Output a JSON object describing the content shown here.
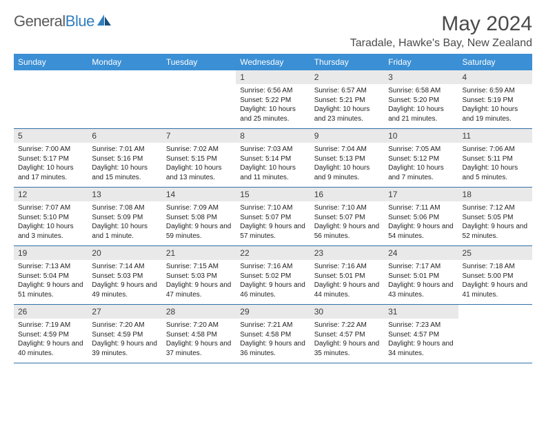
{
  "brand": {
    "word1": "General",
    "word2": "Blue",
    "text_color": "#5a5a5a",
    "accent_color": "#2f7fbf"
  },
  "title": "May 2024",
  "location": "Taradale, Hawke's Bay, New Zealand",
  "colors": {
    "header_bg": "#3b8fd4",
    "header_text": "#ffffff",
    "daynum_bg": "#e9e9e9",
    "row_border": "#2f6fa8",
    "body_text": "#222222",
    "page_bg": "#ffffff"
  },
  "typography": {
    "month_title_fontsize": 30,
    "location_fontsize": 16,
    "weekday_fontsize": 12,
    "daynum_fontsize": 12,
    "body_fontsize": 10
  },
  "weekdays": [
    "Sunday",
    "Monday",
    "Tuesday",
    "Wednesday",
    "Thursday",
    "Friday",
    "Saturday"
  ],
  "weeks": [
    [
      {
        "empty": true
      },
      {
        "empty": true
      },
      {
        "empty": true
      },
      {
        "num": "1",
        "sunrise": "6:56 AM",
        "sunset": "5:22 PM",
        "daylight": "10 hours and 25 minutes."
      },
      {
        "num": "2",
        "sunrise": "6:57 AM",
        "sunset": "5:21 PM",
        "daylight": "10 hours and 23 minutes."
      },
      {
        "num": "3",
        "sunrise": "6:58 AM",
        "sunset": "5:20 PM",
        "daylight": "10 hours and 21 minutes."
      },
      {
        "num": "4",
        "sunrise": "6:59 AM",
        "sunset": "5:19 PM",
        "daylight": "10 hours and 19 minutes."
      }
    ],
    [
      {
        "num": "5",
        "sunrise": "7:00 AM",
        "sunset": "5:17 PM",
        "daylight": "10 hours and 17 minutes."
      },
      {
        "num": "6",
        "sunrise": "7:01 AM",
        "sunset": "5:16 PM",
        "daylight": "10 hours and 15 minutes."
      },
      {
        "num": "7",
        "sunrise": "7:02 AM",
        "sunset": "5:15 PM",
        "daylight": "10 hours and 13 minutes."
      },
      {
        "num": "8",
        "sunrise": "7:03 AM",
        "sunset": "5:14 PM",
        "daylight": "10 hours and 11 minutes."
      },
      {
        "num": "9",
        "sunrise": "7:04 AM",
        "sunset": "5:13 PM",
        "daylight": "10 hours and 9 minutes."
      },
      {
        "num": "10",
        "sunrise": "7:05 AM",
        "sunset": "5:12 PM",
        "daylight": "10 hours and 7 minutes."
      },
      {
        "num": "11",
        "sunrise": "7:06 AM",
        "sunset": "5:11 PM",
        "daylight": "10 hours and 5 minutes."
      }
    ],
    [
      {
        "num": "12",
        "sunrise": "7:07 AM",
        "sunset": "5:10 PM",
        "daylight": "10 hours and 3 minutes."
      },
      {
        "num": "13",
        "sunrise": "7:08 AM",
        "sunset": "5:09 PM",
        "daylight": "10 hours and 1 minute."
      },
      {
        "num": "14",
        "sunrise": "7:09 AM",
        "sunset": "5:08 PM",
        "daylight": "9 hours and 59 minutes."
      },
      {
        "num": "15",
        "sunrise": "7:10 AM",
        "sunset": "5:07 PM",
        "daylight": "9 hours and 57 minutes."
      },
      {
        "num": "16",
        "sunrise": "7:10 AM",
        "sunset": "5:07 PM",
        "daylight": "9 hours and 56 minutes."
      },
      {
        "num": "17",
        "sunrise": "7:11 AM",
        "sunset": "5:06 PM",
        "daylight": "9 hours and 54 minutes."
      },
      {
        "num": "18",
        "sunrise": "7:12 AM",
        "sunset": "5:05 PM",
        "daylight": "9 hours and 52 minutes."
      }
    ],
    [
      {
        "num": "19",
        "sunrise": "7:13 AM",
        "sunset": "5:04 PM",
        "daylight": "9 hours and 51 minutes."
      },
      {
        "num": "20",
        "sunrise": "7:14 AM",
        "sunset": "5:03 PM",
        "daylight": "9 hours and 49 minutes."
      },
      {
        "num": "21",
        "sunrise": "7:15 AM",
        "sunset": "5:03 PM",
        "daylight": "9 hours and 47 minutes."
      },
      {
        "num": "22",
        "sunrise": "7:16 AM",
        "sunset": "5:02 PM",
        "daylight": "9 hours and 46 minutes."
      },
      {
        "num": "23",
        "sunrise": "7:16 AM",
        "sunset": "5:01 PM",
        "daylight": "9 hours and 44 minutes."
      },
      {
        "num": "24",
        "sunrise": "7:17 AM",
        "sunset": "5:01 PM",
        "daylight": "9 hours and 43 minutes."
      },
      {
        "num": "25",
        "sunrise": "7:18 AM",
        "sunset": "5:00 PM",
        "daylight": "9 hours and 41 minutes."
      }
    ],
    [
      {
        "num": "26",
        "sunrise": "7:19 AM",
        "sunset": "4:59 PM",
        "daylight": "9 hours and 40 minutes."
      },
      {
        "num": "27",
        "sunrise": "7:20 AM",
        "sunset": "4:59 PM",
        "daylight": "9 hours and 39 minutes."
      },
      {
        "num": "28",
        "sunrise": "7:20 AM",
        "sunset": "4:58 PM",
        "daylight": "9 hours and 37 minutes."
      },
      {
        "num": "29",
        "sunrise": "7:21 AM",
        "sunset": "4:58 PM",
        "daylight": "9 hours and 36 minutes."
      },
      {
        "num": "30",
        "sunrise": "7:22 AM",
        "sunset": "4:57 PM",
        "daylight": "9 hours and 35 minutes."
      },
      {
        "num": "31",
        "sunrise": "7:23 AM",
        "sunset": "4:57 PM",
        "daylight": "9 hours and 34 minutes."
      },
      {
        "empty": true
      }
    ]
  ],
  "labels": {
    "sunrise": "Sunrise:",
    "sunset": "Sunset:",
    "daylight": "Daylight:"
  }
}
